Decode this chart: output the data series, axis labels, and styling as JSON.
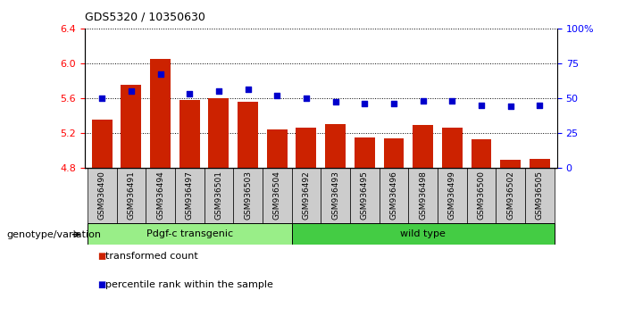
{
  "title": "GDS5320 / 10350630",
  "categories": [
    "GSM936490",
    "GSM936491",
    "GSM936494",
    "GSM936497",
    "GSM936501",
    "GSM936503",
    "GSM936504",
    "GSM936492",
    "GSM936493",
    "GSM936495",
    "GSM936496",
    "GSM936498",
    "GSM936499",
    "GSM936500",
    "GSM936502",
    "GSM936505"
  ],
  "transformed_count": [
    5.35,
    5.75,
    6.05,
    5.58,
    5.6,
    5.56,
    5.24,
    5.26,
    5.3,
    5.15,
    5.14,
    5.29,
    5.26,
    5.12,
    4.89,
    4.9
  ],
  "percentile_rank": [
    50,
    55,
    67,
    53,
    55,
    56,
    52,
    50,
    47,
    46,
    46,
    48,
    48,
    45,
    44,
    45
  ],
  "ylim": [
    4.8,
    6.4
  ],
  "y2lim": [
    0,
    100
  ],
  "yticks": [
    4.8,
    5.2,
    5.6,
    6.0,
    6.4
  ],
  "y2ticks": [
    0,
    25,
    50,
    75,
    100
  ],
  "bar_color": "#cc2200",
  "dot_color": "#0000cc",
  "group1_label": "Pdgf-c transgenic",
  "group2_label": "wild type",
  "group1_color": "#99ee88",
  "group2_color": "#44cc44",
  "group1_count": 7,
  "group2_count": 9,
  "legend_bar_label": "transformed count",
  "legend_dot_label": "percentile rank within the sample",
  "xlabel_label": "genotype/variation",
  "tick_bg_color": "#cccccc",
  "bar_width": 0.7
}
